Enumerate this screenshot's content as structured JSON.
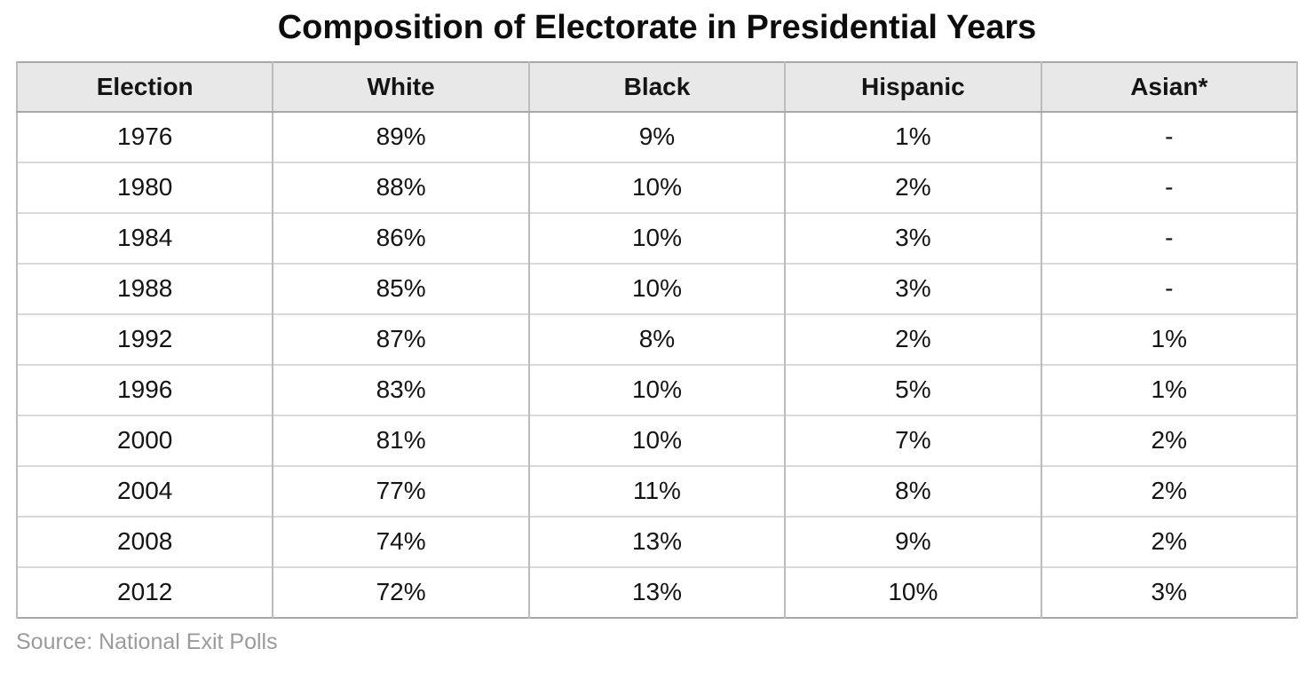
{
  "title": "Composition of Electorate in Presidential Years",
  "table": {
    "columns": [
      "Election",
      "White",
      "Black",
      "Hispanic",
      "Asian*"
    ],
    "rows": [
      [
        "1976",
        "89%",
        "9%",
        "1%",
        "-"
      ],
      [
        "1980",
        "88%",
        "10%",
        "2%",
        "-"
      ],
      [
        "1984",
        "86%",
        "10%",
        "3%",
        "-"
      ],
      [
        "1988",
        "85%",
        "10%",
        "3%",
        "-"
      ],
      [
        "1992",
        "87%",
        "8%",
        "2%",
        "1%"
      ],
      [
        "1996",
        "83%",
        "10%",
        "5%",
        "1%"
      ],
      [
        "2000",
        "81%",
        "10%",
        "7%",
        "2%"
      ],
      [
        "2004",
        "77%",
        "11%",
        "8%",
        "2%"
      ],
      [
        "2008",
        "74%",
        "13%",
        "9%",
        "2%"
      ],
      [
        "2012",
        "72%",
        "13%",
        "10%",
        "3%"
      ]
    ]
  },
  "source": "Source: National Exit Polls",
  "colors": {
    "header_bg": "#e8e8e8",
    "outer_border": "#a8a8a8",
    "column_border": "#bcbcbc",
    "row_border": "#d9d9d9",
    "source_text": "#9b9b9b",
    "text": "#141414"
  },
  "chart_data": {
    "type": "table",
    "title": "Composition of Electorate in Presidential Years",
    "columns": [
      "Election",
      "White",
      "Black",
      "Hispanic",
      "Asian*"
    ],
    "categories": [
      "1976",
      "1980",
      "1984",
      "1988",
      "1992",
      "1996",
      "2000",
      "2004",
      "2008",
      "2012"
    ],
    "series": [
      {
        "name": "White",
        "values": [
          89,
          88,
          86,
          85,
          87,
          83,
          81,
          77,
          74,
          72
        ]
      },
      {
        "name": "Black",
        "values": [
          9,
          10,
          10,
          10,
          8,
          10,
          10,
          11,
          13,
          13
        ]
      },
      {
        "name": "Hispanic",
        "values": [
          1,
          2,
          3,
          3,
          2,
          5,
          7,
          8,
          9,
          10
        ]
      },
      {
        "name": "Asian",
        "values": [
          null,
          null,
          null,
          null,
          1,
          1,
          2,
          2,
          2,
          3
        ]
      }
    ],
    "unit": "percent",
    "missing_value_marker": "-",
    "footnote_marker": "*",
    "source": "National Exit Polls",
    "legend_position": "none",
    "grid": true
  }
}
